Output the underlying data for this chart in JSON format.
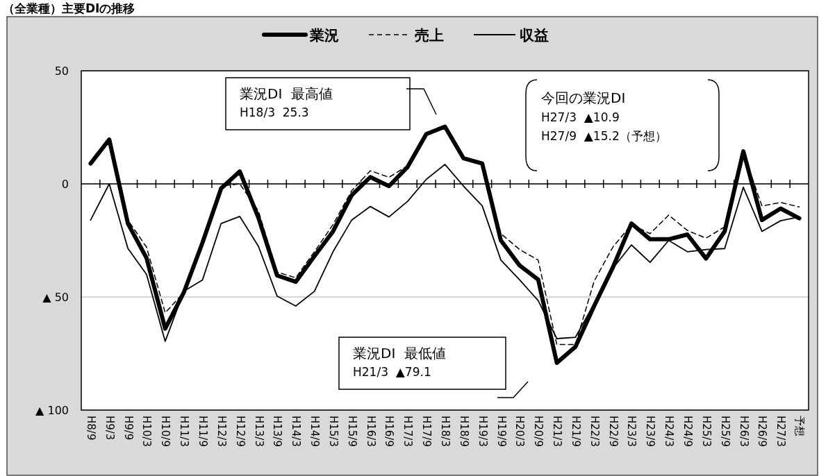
{
  "chart_data": {
    "type": "line",
    "title": "（全業種）主要DIの推移",
    "categories": [
      "H8/9",
      "H9/3",
      "H9/9",
      "H10/3",
      "H10/9",
      "H11/3",
      "H11/9",
      "H12/3",
      "H12/9",
      "H13/3",
      "H13/9",
      "H14/3",
      "H14/9",
      "H15/3",
      "H15/9",
      "H16/3",
      "H16/9",
      "H17/3",
      "H17/9",
      "H18/3",
      "H18/9",
      "H19/3",
      "H19/9",
      "H20/3",
      "H20/9",
      "H21/3",
      "H21/9",
      "H22/3",
      "H22/9",
      "H23/3",
      "H23/9",
      "H24/3",
      "H24/9",
      "H25/3",
      "H25/9",
      "H26/3",
      "H26/9",
      "H27/3",
      "予想"
    ],
    "series": [
      {
        "name": "業況",
        "color": "#000000",
        "line_style": "solid",
        "values": [
          9,
          19.6,
          -17.5,
          -32.8,
          -64,
          -48,
          -26,
          -2,
          5.5,
          -15,
          -40.5,
          -43.3,
          -32,
          -21,
          -5,
          3,
          -1,
          7.5,
          22,
          25.3,
          11.3,
          9,
          -25,
          -36,
          -42.3,
          -79.1,
          -72,
          -54,
          -37,
          -17.5,
          -24.5,
          -24.5,
          -22.4,
          -33,
          -21,
          14.4,
          -16,
          -10.9,
          -15.2
        ]
      },
      {
        "name": "売上",
        "color": "#000000",
        "line_style": "dashed",
        "values": [
          9,
          19.6,
          -16,
          -28,
          -57,
          -48,
          -27,
          -1,
          0,
          -12,
          -39,
          -41.5,
          -30,
          -18,
          -3,
          5.8,
          2.9,
          8,
          22,
          25,
          11,
          9,
          -22,
          -29,
          -33.7,
          -71,
          -71,
          -43,
          -28,
          -18,
          -22,
          -13.8,
          -20.6,
          -24,
          -19,
          14,
          -9.8,
          -8.2,
          -10.2
        ]
      },
      {
        "name": "収益",
        "color": "#000000",
        "line_style": "solid",
        "values": [
          -16,
          0,
          -28.5,
          -40,
          -69.6,
          -47.5,
          -42.5,
          -17.5,
          -14.4,
          -27.6,
          -49.6,
          -54,
          -47.5,
          -30,
          -16,
          -10,
          -14.6,
          -7.7,
          2,
          8.6,
          -1,
          -9.7,
          -33.7,
          -42.4,
          -51.6,
          -68.4,
          -67.8,
          -53,
          -37.4,
          -27,
          -34.7,
          -25,
          -30,
          -29,
          -28.6,
          -1.5,
          -21,
          -16.3,
          -14.6
        ]
      }
    ],
    "ylim": [
      -100,
      50
    ],
    "yticks": [
      50,
      0,
      {
        "value": -50,
        "label": "▲ 50"
      },
      {
        "value": -100,
        "label": "▲ 100"
      }
    ],
    "grid": "y",
    "legend": "top",
    "marker": "none",
    "annotations": [
      "業況DI  最高値\nH18/3  25.3",
      "業況DI  最低値\nH21/3  ▲79.1",
      "今回の業況DI\nH27/3  ▲10.9\nH27/9  ▲15.2（予想）"
    ]
  }
}
